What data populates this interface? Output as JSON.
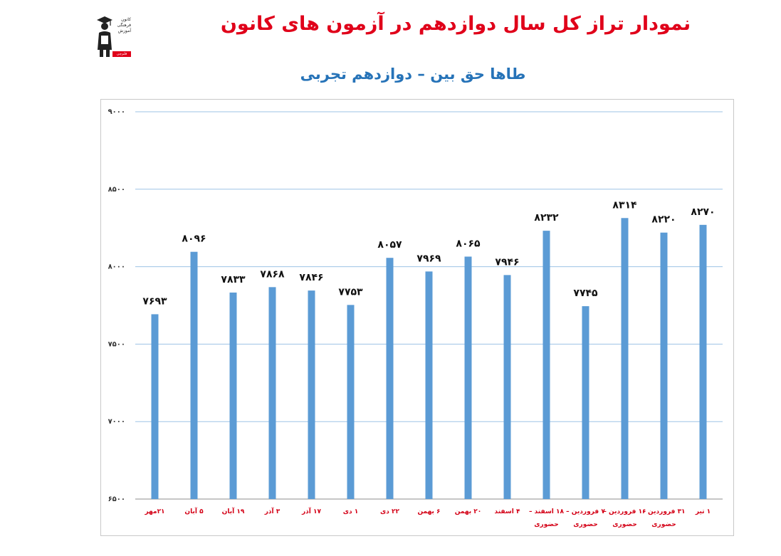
{
  "header": {
    "title": "نمودار تراز کل سال دوازدهم در آزمون های کانون",
    "subtitle": "طاها حق بین – دوازدهم تجربی"
  },
  "logo": {
    "lines": [
      "کانون",
      "فرهنگی",
      "آموزش"
    ],
    "badge": "قلم‌چی"
  },
  "colors": {
    "title": "#e0001a",
    "subtitle": "#2673b8",
    "bar": "#5b9bd5",
    "category_label": "#d40016",
    "gridline": "#9dc3e6"
  },
  "chart_data": {
    "type": "bar",
    "categories": [
      "۲۱مهر",
      "۵ آبان",
      "۱۹ آبان",
      "۳ آذر",
      "۱۷ آذر",
      "۱ دی",
      "۲۲ دی",
      "۶ بهمن",
      "۲۰ بهمن",
      "۴ اسفند",
      "۱۸ اسفند – حضوری",
      "۷ فروردین – حضوری",
      "۱۶ فروردین – حضوری",
      "۳۱ فروردین – حضوری",
      "۱ تیر"
    ],
    "values": [
      7693,
      8096,
      7833,
      7868,
      7846,
      7753,
      8057,
      7969,
      8065,
      7946,
      8232,
      7745,
      8314,
      8220,
      8270
    ],
    "value_labels": [
      "۷۶۹۳",
      "۸۰۹۶",
      "۷۸۳۳",
      "۷۸۶۸",
      "۷۸۴۶",
      "۷۷۵۳",
      "۸۰۵۷",
      "۷۹۶۹",
      "۸۰۶۵",
      "۷۹۴۶",
      "۸۲۳۲",
      "۷۷۴۵",
      "۸۳۱۴",
      "۸۲۲۰",
      "۸۲۷۰"
    ],
    "ylim": [
      6500,
      9000
    ],
    "yticks": [
      6500,
      7000,
      7500,
      8000,
      8500,
      9000
    ],
    "ytick_labels": [
      "۶۵۰۰",
      "۷۰۰۰",
      "۷۵۰۰",
      "۸۰۰۰",
      "۸۵۰۰",
      "۹۰۰۰"
    ],
    "grid": true,
    "legend": "none"
  }
}
